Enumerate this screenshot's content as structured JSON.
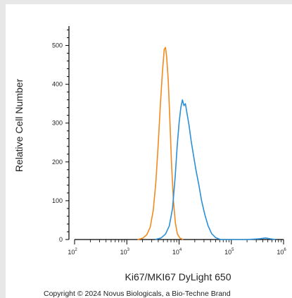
{
  "chart_data": {
    "type": "line",
    "ylabel": "Relative Cell Number",
    "xlabel": "Ki67/MKI67 DyLight 650",
    "x_scale": "log",
    "xlim": [
      100,
      1000000
    ],
    "ylim": [
      0,
      550
    ],
    "y_ticks": [
      0,
      100,
      200,
      300,
      400,
      500
    ],
    "x_ticks": [
      {
        "value": 100,
        "base": "10",
        "exp": "2"
      },
      {
        "value": 1000,
        "base": "10",
        "exp": "3"
      },
      {
        "value": 10000,
        "base": "10",
        "exp": "4"
      },
      {
        "value": 100000,
        "base": "10",
        "exp": "5"
      },
      {
        "value": 1000000,
        "base": "10",
        "exp": "6"
      }
    ],
    "series": [
      {
        "color": "#f28a1e",
        "points": [
          [
            1600,
            0
          ],
          [
            2000,
            3
          ],
          [
            2400,
            12
          ],
          [
            2800,
            32
          ],
          [
            3200,
            75
          ],
          [
            3600,
            150
          ],
          [
            4000,
            250
          ],
          [
            4400,
            350
          ],
          [
            4800,
            430
          ],
          [
            5200,
            490
          ],
          [
            5500,
            495
          ],
          [
            5800,
            470
          ],
          [
            6200,
            410
          ],
          [
            6700,
            300
          ],
          [
            7200,
            190
          ],
          [
            7800,
            100
          ],
          [
            8500,
            42
          ],
          [
            9300,
            14
          ],
          [
            10500,
            3
          ],
          [
            12000,
            0
          ]
        ]
      },
      {
        "color": "#2b8fd8",
        "points": [
          [
            3500,
            0
          ],
          [
            4500,
            4
          ],
          [
            5500,
            14
          ],
          [
            6500,
            35
          ],
          [
            7500,
            80
          ],
          [
            8400,
            160
          ],
          [
            9200,
            240
          ],
          [
            10000,
            300
          ],
          [
            10800,
            340
          ],
          [
            11600,
            360
          ],
          [
            12400,
            345
          ],
          [
            13200,
            350
          ],
          [
            14200,
            325
          ],
          [
            15500,
            295
          ],
          [
            17000,
            255
          ],
          [
            19000,
            215
          ],
          [
            21000,
            180
          ],
          [
            24000,
            140
          ],
          [
            27000,
            100
          ],
          [
            31000,
            65
          ],
          [
            36000,
            35
          ],
          [
            42000,
            15
          ],
          [
            50000,
            5
          ],
          [
            62000,
            0
          ],
          [
            200000,
            0
          ],
          [
            350000,
            2
          ],
          [
            450000,
            4
          ],
          [
            550000,
            2
          ],
          [
            700000,
            0
          ]
        ]
      }
    ]
  },
  "copyright": "Copyright © 2024 Novus Biologicals, a Bio-Techne Brand"
}
